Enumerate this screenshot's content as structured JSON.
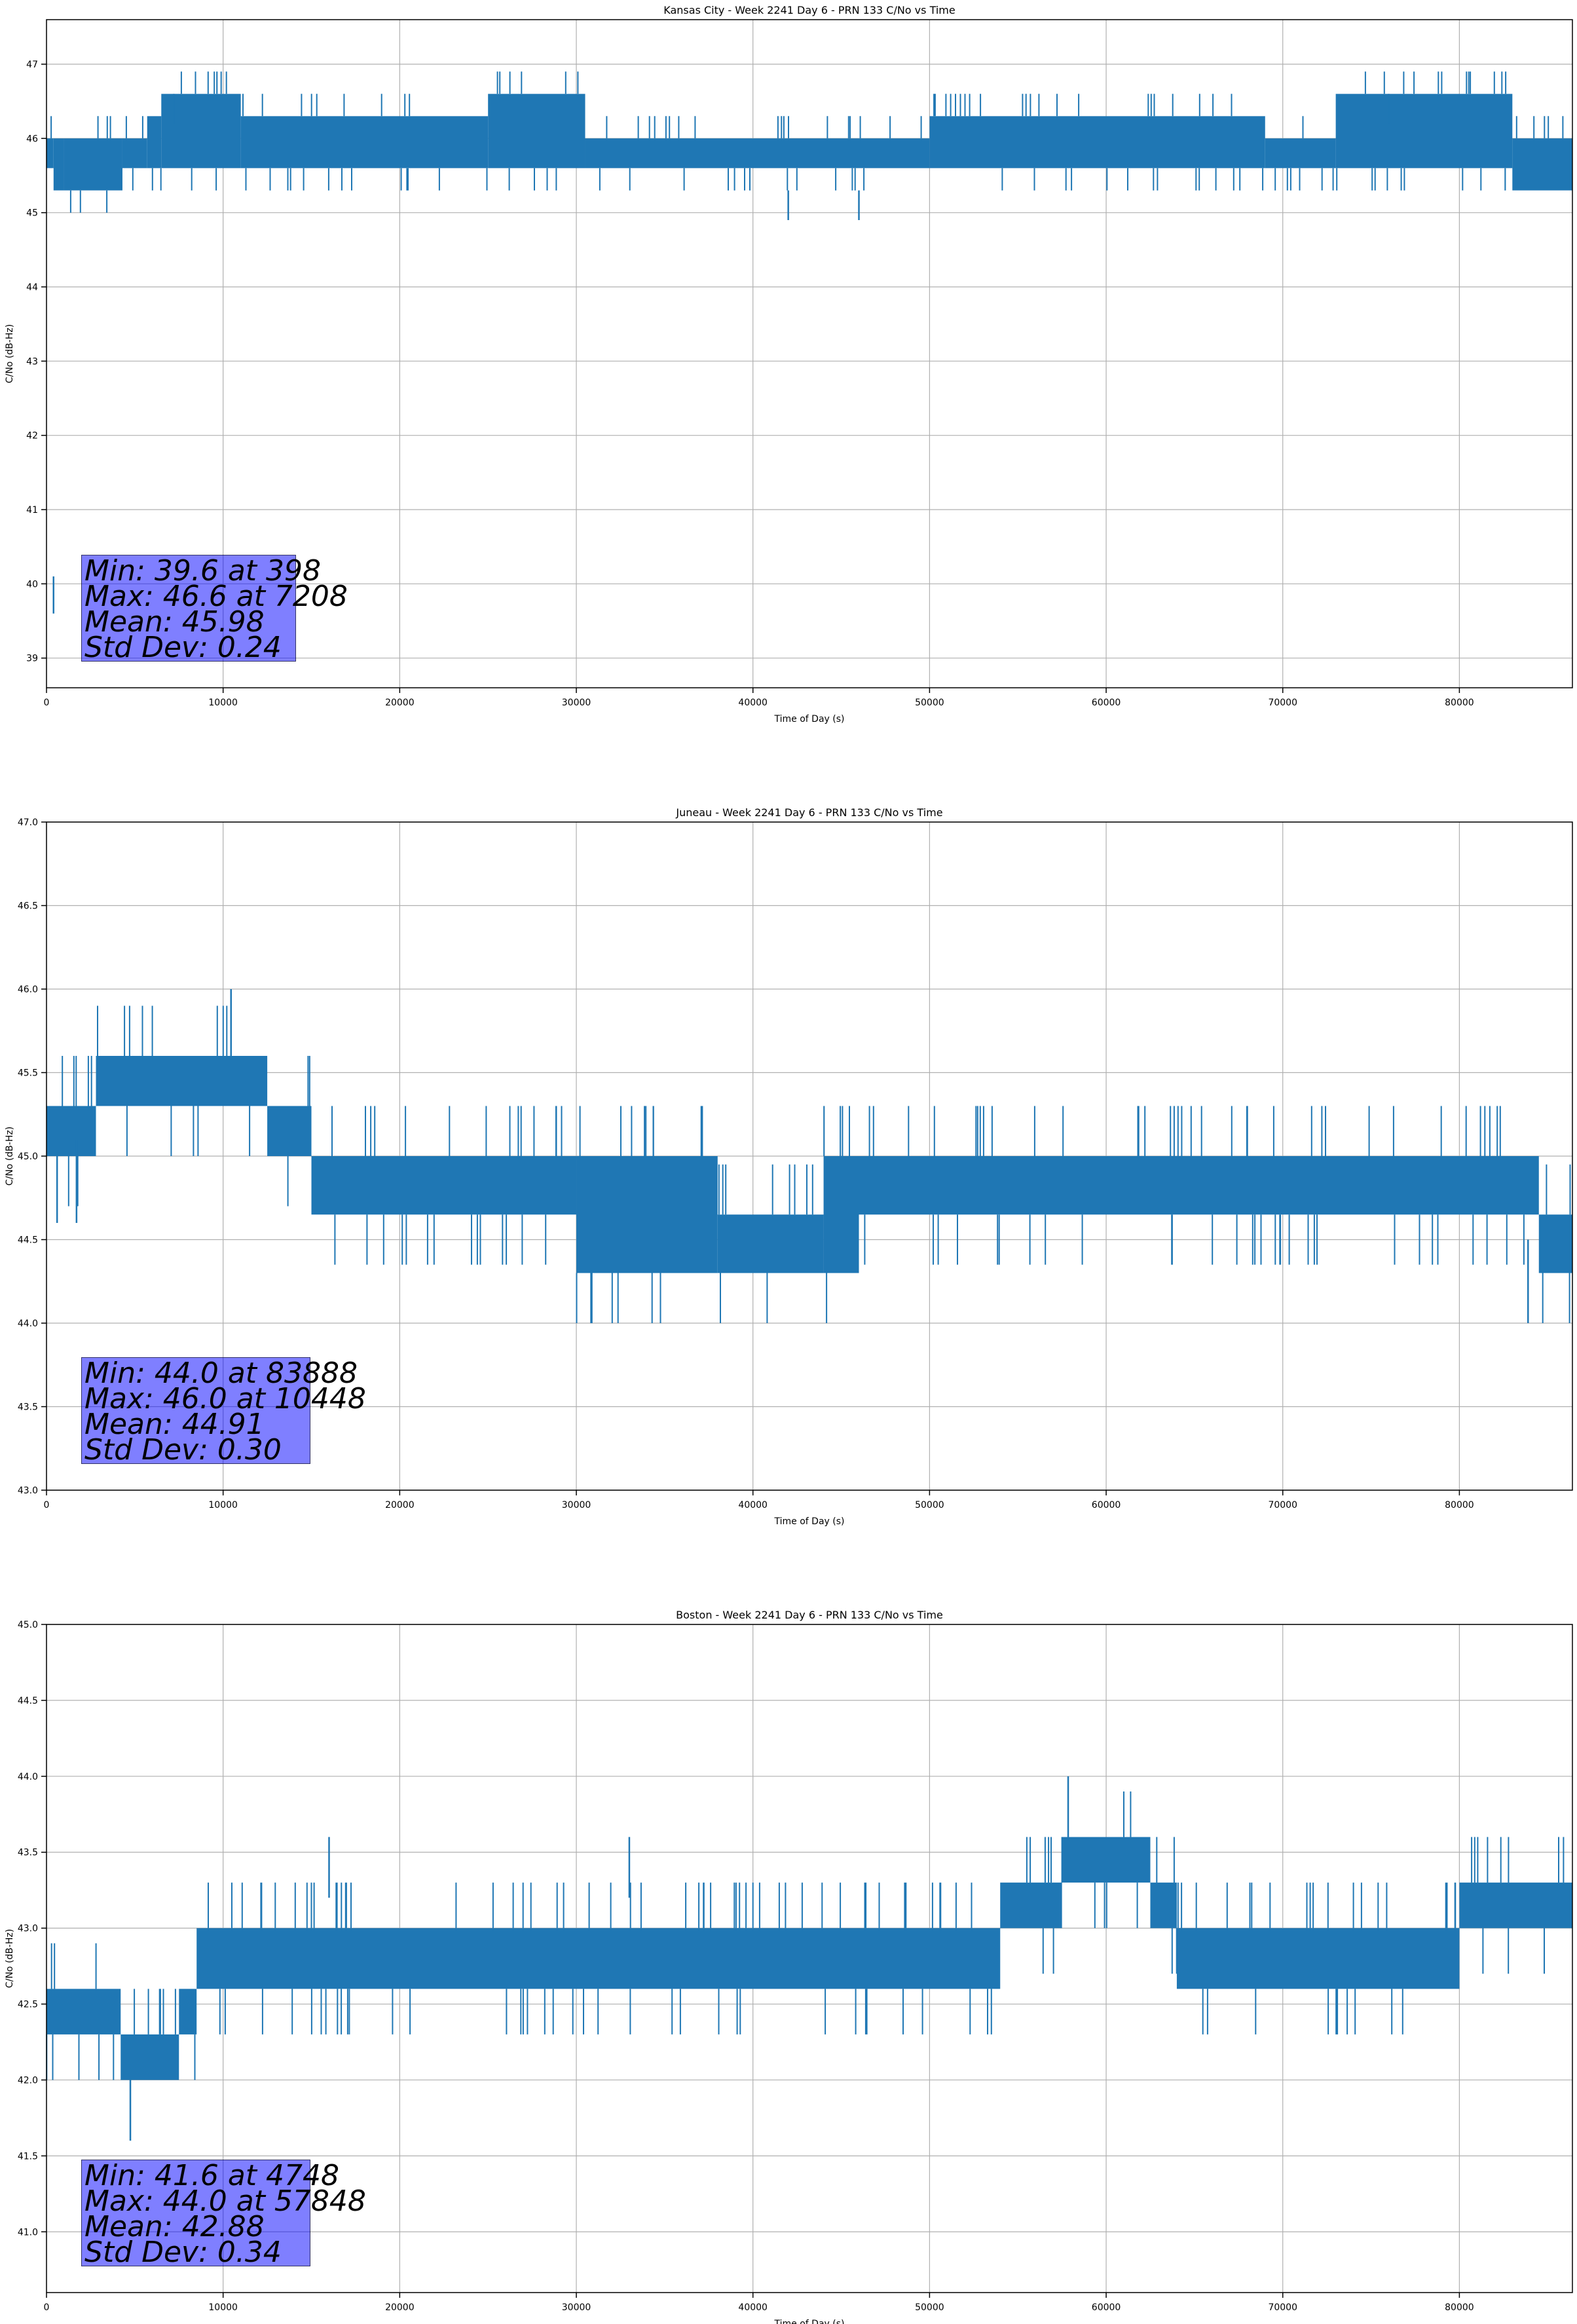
{
  "chart_data": [
    {
      "type": "line",
      "title": "Kansas City - Week 2241 Day 6 - PRN 133 C/No vs Time",
      "xlabel": "Time of Day (s)",
      "ylabel": "C/No (dB-Hz)",
      "xlim": [
        0,
        86400
      ],
      "ylim": [
        38.6,
        47.6
      ],
      "xticks": [
        0,
        10000,
        20000,
        30000,
        40000,
        50000,
        60000,
        70000,
        80000
      ],
      "yticks": [
        39,
        40,
        41,
        42,
        43,
        44,
        45,
        46,
        47
      ],
      "ytick_labels": [
        "39",
        "40",
        "41",
        "42",
        "43",
        "44",
        "45",
        "46",
        "47"
      ],
      "grid": true,
      "line_color": "#1f77b4",
      "step": 0.3,
      "segments": [
        {
          "x": [
            0,
            400
          ],
          "range": [
            45.6,
            46.0
          ]
        },
        {
          "x": [
            400,
            1000
          ],
          "range": [
            45.3,
            46.0
          ]
        },
        {
          "x": [
            1000,
            4300
          ],
          "range": [
            45.3,
            46.0
          ]
        },
        {
          "x": [
            4300,
            5700
          ],
          "range": [
            45.6,
            46.0
          ]
        },
        {
          "x": [
            5700,
            6500
          ],
          "range": [
            45.6,
            46.3
          ]
        },
        {
          "x": [
            6500,
            11000
          ],
          "range": [
            45.6,
            46.6
          ]
        },
        {
          "x": [
            11000,
            25000
          ],
          "range": [
            45.6,
            46.3
          ]
        },
        {
          "x": [
            25000,
            30500
          ],
          "range": [
            45.6,
            46.6
          ]
        },
        {
          "x": [
            30500,
            50000
          ],
          "range": [
            45.6,
            46.0
          ]
        },
        {
          "x": [
            50000,
            69000
          ],
          "range": [
            45.6,
            46.3
          ]
        },
        {
          "x": [
            69000,
            73000
          ],
          "range": [
            45.6,
            46.0
          ]
        },
        {
          "x": [
            73000,
            83000
          ],
          "range": [
            45.6,
            46.6
          ]
        },
        {
          "x": [
            83000,
            86400
          ],
          "range": [
            45.3,
            46.0
          ]
        }
      ],
      "spikes": [
        {
          "x": 398,
          "y": 39.6
        },
        {
          "x": 7208,
          "y": 46.6
        },
        {
          "x": 42000,
          "y": 45.3
        },
        {
          "x": 46000,
          "y": 45.3
        },
        {
          "x": 76000,
          "y": 46.6
        }
      ],
      "stats": {
        "min": "Min: 39.6 at 398",
        "max": "Max: 46.6 at 7208",
        "mean": "Mean: 45.98",
        "std": "Std Dev: 0.24"
      }
    },
    {
      "type": "line",
      "title": "Juneau - Week 2241 Day 6 - PRN 133 C/No vs Time",
      "xlabel": "Time of Day (s)",
      "ylabel": "C/No (dB-Hz)",
      "xlim": [
        0,
        86400
      ],
      "ylim": [
        43.0,
        47.0
      ],
      "xticks": [
        0,
        10000,
        20000,
        30000,
        40000,
        50000,
        60000,
        70000,
        80000
      ],
      "yticks": [
        43.0,
        43.5,
        44.0,
        44.5,
        45.0,
        45.5,
        46.0,
        46.5,
        47.0
      ],
      "ytick_labels": [
        "43.0",
        "43.5",
        "44.0",
        "44.5",
        "45.0",
        "45.5",
        "46.0",
        "46.5",
        "47.0"
      ],
      "grid": true,
      "line_color": "#1f77b4",
      "step": 0.3,
      "segments": [
        {
          "x": [
            0,
            2800
          ],
          "range": [
            45.0,
            45.3
          ]
        },
        {
          "x": [
            2800,
            12500
          ],
          "range": [
            45.3,
            45.6
          ]
        },
        {
          "x": [
            12500,
            15000
          ],
          "range": [
            45.0,
            45.3
          ]
        },
        {
          "x": [
            15000,
            30000
          ],
          "range": [
            44.65,
            45.0
          ]
        },
        {
          "x": [
            30000,
            38000
          ],
          "range": [
            44.3,
            45.0
          ]
        },
        {
          "x": [
            38000,
            44000
          ],
          "range": [
            44.3,
            44.65
          ]
        },
        {
          "x": [
            44000,
            46000
          ],
          "range": [
            44.3,
            45.0
          ]
        },
        {
          "x": [
            46000,
            84500
          ],
          "range": [
            44.65,
            45.0
          ]
        },
        {
          "x": [
            84500,
            86400
          ],
          "range": [
            44.3,
            44.65
          ]
        }
      ],
      "spikes": [
        {
          "x": 10448,
          "y": 46.0
        },
        {
          "x": 83888,
          "y": 44.0
        },
        {
          "x": 600,
          "y": 44.6
        },
        {
          "x": 1700,
          "y": 44.6
        }
      ],
      "stats": {
        "min": "Min: 44.0 at 83888",
        "max": "Max: 46.0 at 10448",
        "mean": "Mean: 44.91",
        "std": "Std Dev: 0.30"
      }
    },
    {
      "type": "line",
      "title": "Boston - Week 2241 Day 6 - PRN 133 C/No vs Time",
      "xlabel": "Time of Day (s)",
      "ylabel": "C/No (dB-Hz)",
      "xlim": [
        0,
        86400
      ],
      "ylim": [
        40.6,
        45.0
      ],
      "xticks": [
        0,
        10000,
        20000,
        30000,
        40000,
        50000,
        60000,
        70000,
        80000
      ],
      "yticks": [
        41.0,
        41.5,
        42.0,
        42.5,
        43.0,
        43.5,
        44.0,
        44.5,
        45.0
      ],
      "ytick_labels": [
        "41.0",
        "41.5",
        "42.0",
        "42.5",
        "43.0",
        "43.5",
        "44.0",
        "44.5",
        "45.0"
      ],
      "grid": true,
      "line_color": "#1f77b4",
      "step": 0.3,
      "segments": [
        {
          "x": [
            0,
            4200
          ],
          "range": [
            42.3,
            42.6
          ]
        },
        {
          "x": [
            4200,
            7500
          ],
          "range": [
            42.0,
            42.3
          ]
        },
        {
          "x": [
            7500,
            8500
          ],
          "range": [
            42.3,
            42.6
          ]
        },
        {
          "x": [
            8500,
            54000
          ],
          "range": [
            42.6,
            43.0
          ]
        },
        {
          "x": [
            54000,
            57500
          ],
          "range": [
            43.0,
            43.3
          ]
        },
        {
          "x": [
            57500,
            62500
          ],
          "range": [
            43.3,
            43.6
          ]
        },
        {
          "x": [
            62500,
            64000
          ],
          "range": [
            43.0,
            43.3
          ]
        },
        {
          "x": [
            64000,
            80000
          ],
          "range": [
            42.6,
            43.0
          ]
        },
        {
          "x": [
            80000,
            86400
          ],
          "range": [
            43.0,
            43.3
          ]
        }
      ],
      "spikes": [
        {
          "x": 4748,
          "y": 41.6
        },
        {
          "x": 57848,
          "y": 44.0
        },
        {
          "x": 33000,
          "y": 43.6
        },
        {
          "x": 16000,
          "y": 43.6
        }
      ],
      "stats": {
        "min": "Min: 41.6 at 4748",
        "max": "Max: 44.0 at 57848",
        "mean": "Mean: 42.88",
        "std": "Std Dev: 0.34"
      }
    }
  ]
}
